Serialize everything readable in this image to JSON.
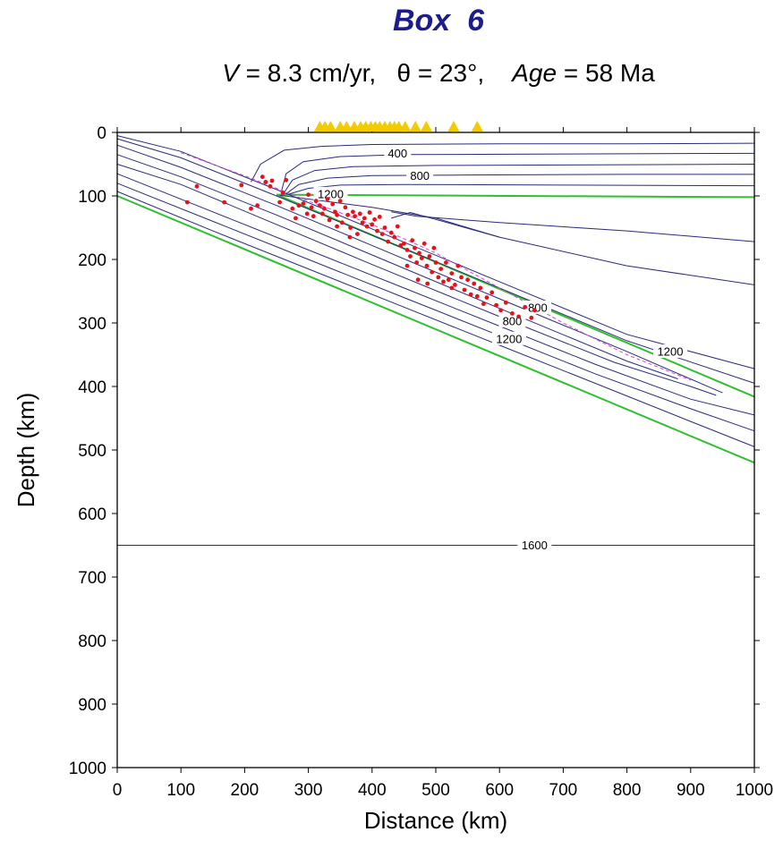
{
  "chart_data": {
    "type": "line",
    "title": "Box  6",
    "subtitle": {
      "v_symbol": "V",
      "v_text": " = 8.3 cm/yr,   ",
      "theta_text": "θ = 23°,    ",
      "age_symbol": "Age",
      "age_text": " = 58 Ma"
    },
    "xlabel": "Distance (km)",
    "ylabel": "Depth (km)",
    "xlim": [
      0,
      1000
    ],
    "ylim": [
      0,
      1000
    ],
    "y_inverted": true,
    "xticks": [
      0,
      100,
      200,
      300,
      400,
      500,
      600,
      700,
      800,
      900,
      1000
    ],
    "yticks": [
      0,
      100,
      200,
      300,
      400,
      500,
      600,
      700,
      800,
      900,
      1000
    ],
    "colors": {
      "isotherm": "#2b2b7a",
      "boundary": "#2fbf2f",
      "quake": "#e8101a",
      "slab_top": "#e040e0",
      "station": "#f2cc00"
    },
    "contour_labels": [
      {
        "text": "400",
        "x": 440,
        "y": 33
      },
      {
        "text": "800",
        "x": 475,
        "y": 68
      },
      {
        "text": "1200",
        "x": 335,
        "y": 97
      },
      {
        "text": "800",
        "x": 660,
        "y": 276
      },
      {
        "text": "800",
        "x": 620,
        "y": 297
      },
      {
        "text": "1200",
        "x": 615,
        "y": 325
      },
      {
        "text": "1200",
        "x": 868,
        "y": 345
      },
      {
        "text": "1600",
        "x": 655,
        "y": 650
      }
    ],
    "green_lines": [
      {
        "name": "overriding_base",
        "points": [
          [
            250,
            98
          ],
          [
            1000,
            102
          ]
        ]
      },
      {
        "name": "slab_top",
        "points": [
          [
            250,
            98
          ],
          [
            1000,
            416
          ]
        ]
      },
      {
        "name": "slab_base",
        "points": [
          [
            0,
            100
          ],
          [
            1000,
            520
          ]
        ]
      }
    ],
    "slab_top_dashed": {
      "points": [
        [
          100,
          32
        ],
        [
          210,
          72
        ],
        [
          300,
          108
        ],
        [
          400,
          145
        ],
        [
          500,
          190
        ],
        [
          600,
          245
        ],
        [
          700,
          300
        ],
        [
          800,
          350
        ],
        [
          900,
          390
        ]
      ]
    },
    "isotherms": [
      {
        "name": "wedge_1",
        "points": [
          [
            210,
            78
          ],
          [
            225,
            50
          ],
          [
            262,
            28
          ],
          [
            320,
            22
          ],
          [
            400,
            19
          ],
          [
            600,
            18
          ],
          [
            800,
            18
          ],
          [
            1000,
            17
          ]
        ]
      },
      {
        "name": "wedge_2",
        "points": [
          [
            258,
            92
          ],
          [
            265,
            65
          ],
          [
            292,
            46
          ],
          [
            350,
            38
          ],
          [
            450,
            35
          ],
          [
            700,
            34
          ],
          [
            1000,
            33
          ]
        ]
      },
      {
        "name": "wedge_3",
        "points": [
          [
            262,
            95
          ],
          [
            275,
            75
          ],
          [
            310,
            60
          ],
          [
            370,
            54
          ],
          [
            500,
            52
          ],
          [
            750,
            51
          ],
          [
            1000,
            50
          ]
        ]
      },
      {
        "name": "wedge_4",
        "points": [
          [
            266,
            96
          ],
          [
            285,
            82
          ],
          [
            330,
            72
          ],
          [
            400,
            68
          ],
          [
            550,
            67
          ],
          [
            800,
            66
          ],
          [
            1000,
            66
          ]
        ]
      },
      {
        "name": "wedge_5",
        "points": [
          [
            270,
            97
          ],
          [
            300,
            88
          ],
          [
            350,
            83
          ],
          [
            450,
            82
          ],
          [
            700,
            83
          ],
          [
            1000,
            84
          ]
        ]
      },
      {
        "name": "slab_top_iso_1",
        "points": [
          [
            255,
            99
          ],
          [
            400,
            118
          ],
          [
            500,
            135
          ],
          [
            600,
            165
          ],
          [
            800,
            210
          ],
          [
            1000,
            240
          ]
        ]
      },
      {
        "name": "slab_top_iso_2",
        "points": [
          [
            430,
            135
          ],
          [
            460,
            126
          ],
          [
            500,
            137
          ],
          [
            600,
            165
          ]
        ]
      },
      {
        "name": "slab_outer_1",
        "points": [
          [
            0,
            5
          ],
          [
            100,
            30
          ],
          [
            250,
            90
          ],
          [
            400,
            152
          ],
          [
            600,
            235
          ],
          [
            800,
            318
          ],
          [
            1000,
            372
          ]
        ]
      },
      {
        "name": "slab_outer_2",
        "points": [
          [
            0,
            10
          ],
          [
            100,
            40
          ],
          [
            250,
            100
          ],
          [
            400,
            162
          ],
          [
            600,
            245
          ],
          [
            800,
            328
          ],
          [
            1000,
            395
          ]
        ]
      },
      {
        "name": "slab_inner_1",
        "points": [
          [
            0,
            20
          ],
          [
            100,
            55
          ],
          [
            250,
            115
          ],
          [
            400,
            178
          ],
          [
            600,
            262
          ],
          [
            800,
            345
          ],
          [
            950,
            410
          ]
        ]
      },
      {
        "name": "slab_inner_2",
        "points": [
          [
            0,
            35
          ],
          [
            100,
            70
          ],
          [
            250,
            130
          ],
          [
            400,
            193
          ],
          [
            600,
            277
          ],
          [
            800,
            360
          ],
          [
            880,
            388
          ]
        ]
      },
      {
        "name": "slab_inner_3",
        "points": [
          [
            0,
            50
          ],
          [
            100,
            82
          ],
          [
            250,
            145
          ],
          [
            400,
            208
          ],
          [
            600,
            290
          ],
          [
            780,
            362
          ],
          [
            900,
            400
          ],
          [
            940,
            414
          ]
        ]
      },
      {
        "name": "slab_base_iso_1",
        "points": [
          [
            0,
            65
          ],
          [
            150,
            125
          ],
          [
            300,
            185
          ],
          [
            450,
            245
          ],
          [
            600,
            305
          ],
          [
            750,
            365
          ],
          [
            900,
            420
          ],
          [
            1000,
            445
          ]
        ]
      },
      {
        "name": "slab_base_iso_2",
        "points": [
          [
            0,
            80
          ],
          [
            150,
            140
          ],
          [
            300,
            200
          ],
          [
            450,
            260
          ],
          [
            600,
            320
          ],
          [
            750,
            380
          ],
          [
            900,
            435
          ],
          [
            1000,
            470
          ]
        ]
      },
      {
        "name": "slab_base_iso_3",
        "points": [
          [
            0,
            93
          ],
          [
            150,
            155
          ],
          [
            300,
            215
          ],
          [
            450,
            275
          ],
          [
            600,
            335
          ],
          [
            750,
            395
          ],
          [
            900,
            455
          ],
          [
            1000,
            495
          ]
        ]
      },
      {
        "name": "overriding_right",
        "points": [
          [
            430,
            125
          ],
          [
            470,
            132
          ],
          [
            600,
            142
          ],
          [
            800,
            155
          ],
          [
            1000,
            172
          ]
        ]
      },
      {
        "name": "iso_1600",
        "points": [
          [
            0,
            650
          ],
          [
            1000,
            650
          ]
        ]
      }
    ],
    "earthquakes": [
      [
        110,
        110
      ],
      [
        125,
        85
      ],
      [
        168,
        110
      ],
      [
        195,
        83
      ],
      [
        210,
        120
      ],
      [
        220,
        115
      ],
      [
        228,
        70
      ],
      [
        233,
        78
      ],
      [
        240,
        85
      ],
      [
        243,
        76
      ],
      [
        255,
        110
      ],
      [
        260,
        95
      ],
      [
        265,
        75
      ],
      [
        275,
        120
      ],
      [
        280,
        135
      ],
      [
        285,
        115
      ],
      [
        292,
        112
      ],
      [
        298,
        128
      ],
      [
        300,
        98
      ],
      [
        305,
        118
      ],
      [
        308,
        132
      ],
      [
        312,
        108
      ],
      [
        318,
        115
      ],
      [
        322,
        128
      ],
      [
        325,
        120
      ],
      [
        330,
        105
      ],
      [
        333,
        138
      ],
      [
        338,
        113
      ],
      [
        342,
        125
      ],
      [
        345,
        130
      ],
      [
        350,
        108
      ],
      [
        353,
        142
      ],
      [
        358,
        118
      ],
      [
        362,
        130
      ],
      [
        366,
        150
      ],
      [
        370,
        125
      ],
      [
        373,
        132
      ],
      [
        377,
        160
      ],
      [
        381,
        128
      ],
      [
        385,
        142
      ],
      [
        388,
        135
      ],
      [
        392,
        148
      ],
      [
        396,
        126
      ],
      [
        400,
        145
      ],
      [
        404,
        137
      ],
      [
        408,
        155
      ],
      [
        412,
        133
      ],
      [
        416,
        160
      ],
      [
        420,
        150
      ],
      [
        425,
        172
      ],
      [
        430,
        158
      ],
      [
        435,
        165
      ],
      [
        440,
        148
      ],
      [
        445,
        178
      ],
      [
        450,
        175
      ],
      [
        455,
        185
      ],
      [
        460,
        195
      ],
      [
        463,
        170
      ],
      [
        467,
        182
      ],
      [
        470,
        205
      ],
      [
        474,
        190
      ],
      [
        478,
        198
      ],
      [
        482,
        175
      ],
      [
        486,
        210
      ],
      [
        490,
        195
      ],
      [
        494,
        220
      ],
      [
        497,
        182
      ],
      [
        500,
        205
      ],
      [
        504,
        228
      ],
      [
        508,
        215
      ],
      [
        512,
        235
      ],
      [
        516,
        205
      ],
      [
        520,
        232
      ],
      [
        525,
        222
      ],
      [
        530,
        240
      ],
      [
        535,
        210
      ],
      [
        540,
        228
      ],
      [
        545,
        248
      ],
      [
        550,
        232
      ],
      [
        555,
        255
      ],
      [
        560,
        238
      ],
      [
        565,
        258
      ],
      [
        570,
        245
      ],
      [
        575,
        270
      ],
      [
        580,
        260
      ],
      [
        588,
        252
      ],
      [
        595,
        272
      ],
      [
        602,
        280
      ],
      [
        610,
        268
      ],
      [
        620,
        285
      ],
      [
        630,
        290
      ],
      [
        640,
        275
      ],
      [
        650,
        292
      ],
      [
        655,
        280
      ],
      [
        365,
        165
      ],
      [
        345,
        148
      ],
      [
        455,
        210
      ],
      [
        472,
        232
      ],
      [
        487,
        238
      ],
      [
        525,
        245
      ]
    ],
    "stations": [
      318,
      326,
      335,
      350,
      360,
      372,
      382,
      390,
      398,
      405,
      412,
      420,
      428,
      435,
      442,
      452,
      468,
      485,
      528,
      565
    ]
  }
}
